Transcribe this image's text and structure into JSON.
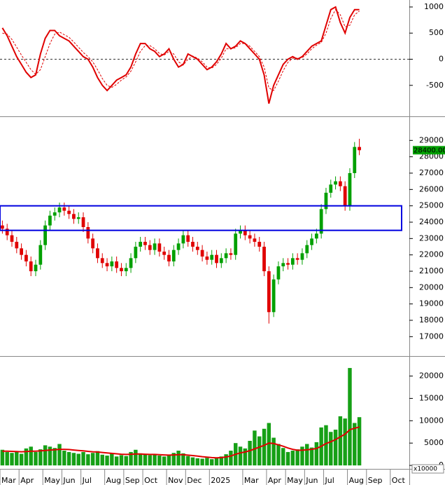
{
  "chart_data": [
    {
      "type": "line",
      "ylim": [
        -1040,
        1080
      ],
      "yticks": [
        1000,
        500,
        0,
        -500
      ],
      "zero_line": true,
      "series": [
        {
          "color": "#e00000",
          "dash": false,
          "values": [
            600,
            450,
            250,
            50,
            -100,
            -250,
            -350,
            -300,
            100,
            400,
            550,
            550,
            450,
            400,
            350,
            250,
            150,
            50,
            0,
            -150,
            -350,
            -500,
            -600,
            -500,
            -400,
            -350,
            -300,
            -150,
            100,
            300,
            300,
            200,
            150,
            50,
            100,
            200,
            0,
            -150,
            -100,
            100,
            50,
            0,
            -100,
            -200,
            -150,
            -50,
            100,
            300,
            200,
            250,
            350,
            300,
            200,
            100,
            0,
            -300,
            -850,
            -500,
            -300,
            -100,
            0,
            50,
            0,
            50,
            150,
            250,
            300,
            350,
            650,
            950,
            1000,
            700,
            500,
            800,
            950,
            950,
            null,
            null,
            null,
            null,
            null,
            null,
            null,
            null,
            null,
            null
          ]
        },
        {
          "color": "#e00000",
          "dash": true,
          "values": [
            500,
            480,
            380,
            230,
            80,
            -60,
            -200,
            -290,
            -200,
            50,
            300,
            480,
            520,
            470,
            420,
            330,
            230,
            130,
            50,
            -50,
            -200,
            -370,
            -500,
            -540,
            -480,
            -400,
            -340,
            -230,
            -50,
            150,
            260,
            260,
            200,
            110,
            80,
            150,
            100,
            -50,
            -110,
            0,
            60,
            20,
            -50,
            -150,
            -170,
            -100,
            20,
            200,
            200,
            220,
            300,
            300,
            250,
            150,
            50,
            -150,
            -550,
            -600,
            -420,
            -220,
            -60,
            20,
            20,
            30,
            100,
            200,
            270,
            320,
            500,
            780,
            950,
            850,
            620,
            650,
            850,
            920,
            null,
            null,
            null,
            null,
            null,
            null,
            null,
            null,
            null,
            null
          ]
        }
      ]
    },
    {
      "type": "candlestick",
      "ylim": [
        15900,
        30300
      ],
      "yticks": [
        29000,
        28000,
        27000,
        26000,
        25000,
        24000,
        23000,
        22000,
        21000,
        20000,
        19000,
        18000,
        17000
      ],
      "up_color": "#00a000",
      "down_color": "#e00000",
      "zone": [
        23500,
        25000
      ],
      "zone_color": "#0000e0",
      "last": {
        "value": 28400,
        "label": "28400.00"
      },
      "last_color": "#00a000",
      "candles": [
        [
          23800,
          24100,
          23300,
          23600
        ],
        [
          23600,
          23900,
          22900,
          23200
        ],
        [
          23200,
          23500,
          22500,
          22800
        ],
        [
          22800,
          23100,
          22100,
          22400
        ],
        [
          22400,
          22700,
          21700,
          22000
        ],
        [
          22000,
          22300,
          21300,
          21600
        ],
        [
          21600,
          21900,
          20700,
          21000
        ],
        [
          21000,
          21700,
          20700,
          21400
        ],
        [
          21400,
          22900,
          21100,
          22600
        ],
        [
          22600,
          24100,
          22300,
          23800
        ],
        [
          23800,
          24700,
          23500,
          24400
        ],
        [
          24400,
          24900,
          24100,
          24600
        ],
        [
          24600,
          25200,
          24300,
          24900
        ],
        [
          24900,
          25200,
          24400,
          24700
        ],
        [
          24700,
          25000,
          24200,
          24500
        ],
        [
          24500,
          24800,
          23900,
          24200
        ],
        [
          24200,
          24600,
          23900,
          24300
        ],
        [
          24300,
          24600,
          23400,
          23700
        ],
        [
          23700,
          24000,
          22700,
          23000
        ],
        [
          23000,
          23300,
          22100,
          22400
        ],
        [
          22400,
          22700,
          21500,
          21800
        ],
        [
          21800,
          22100,
          21200,
          21500
        ],
        [
          21500,
          21800,
          21000,
          21300
        ],
        [
          21300,
          21900,
          21000,
          21600
        ],
        [
          21600,
          21900,
          20900,
          21200
        ],
        [
          21200,
          21500,
          20700,
          21000
        ],
        [
          21000,
          21500,
          20700,
          21200
        ],
        [
          21200,
          22100,
          20900,
          21800
        ],
        [
          21800,
          22800,
          21500,
          22500
        ],
        [
          22500,
          23100,
          22200,
          22800
        ],
        [
          22800,
          23100,
          22300,
          22600
        ],
        [
          22600,
          22900,
          22000,
          22300
        ],
        [
          22300,
          23000,
          22000,
          22700
        ],
        [
          22700,
          23000,
          21900,
          22200
        ],
        [
          22200,
          22500,
          21700,
          22000
        ],
        [
          22000,
          22300,
          21300,
          21600
        ],
        [
          21600,
          22600,
          21300,
          22300
        ],
        [
          22300,
          23000,
          22000,
          22700
        ],
        [
          22700,
          23500,
          22400,
          23200
        ],
        [
          23200,
          23500,
          22500,
          22800
        ],
        [
          22800,
          23100,
          22200,
          22500
        ],
        [
          22500,
          22800,
          22000,
          22300
        ],
        [
          22300,
          22600,
          21600,
          21900
        ],
        [
          21900,
          22200,
          21400,
          21700
        ],
        [
          21700,
          22300,
          21400,
          22000
        ],
        [
          22000,
          22300,
          21200,
          21500
        ],
        [
          21500,
          22100,
          21200,
          21800
        ],
        [
          21800,
          22400,
          21500,
          22100
        ],
        [
          22100,
          22400,
          21700,
          22000
        ],
        [
          22000,
          23600,
          21700,
          23300
        ],
        [
          23300,
          23800,
          23000,
          23500
        ],
        [
          23500,
          23800,
          22900,
          23200
        ],
        [
          23200,
          23500,
          22700,
          23000
        ],
        [
          23000,
          23300,
          22500,
          22800
        ],
        [
          22800,
          23100,
          22200,
          22500
        ],
        [
          22500,
          22800,
          20700,
          21000
        ],
        [
          21000,
          21300,
          17800,
          18500
        ],
        [
          18500,
          20800,
          18200,
          20500
        ],
        [
          20500,
          21600,
          20200,
          21300
        ],
        [
          21300,
          21800,
          21000,
          21500
        ],
        [
          21500,
          21800,
          21100,
          21400
        ],
        [
          21400,
          22100,
          21100,
          21800
        ],
        [
          21800,
          22100,
          21400,
          21700
        ],
        [
          21700,
          22400,
          21400,
          22100
        ],
        [
          22100,
          22900,
          21800,
          22600
        ],
        [
          22600,
          23300,
          22300,
          23000
        ],
        [
          23000,
          23600,
          22700,
          23300
        ],
        [
          23300,
          25100,
          23000,
          24800
        ],
        [
          24800,
          26100,
          24500,
          25800
        ],
        [
          25800,
          26600,
          25500,
          26300
        ],
        [
          26300,
          26800,
          26000,
          26500
        ],
        [
          26500,
          26800,
          25900,
          26200
        ],
        [
          26200,
          26500,
          24700,
          25000
        ],
        [
          25000,
          27300,
          24700,
          27000
        ],
        [
          27000,
          28900,
          26700,
          28600
        ],
        [
          28600,
          29100,
          28100,
          28400
        ],
        null,
        null,
        null,
        null,
        null,
        null,
        null,
        null,
        null,
        null
      ]
    },
    {
      "type": "bar",
      "ylim": [
        -460,
        23850
      ],
      "yticks": [
        20000,
        15000,
        10000,
        5000,
        0
      ],
      "unit_label": "x10000",
      "categories": [
        "Mar",
        null,
        null,
        null,
        "Apr",
        null,
        null,
        null,
        null,
        "May",
        null,
        null,
        null,
        "Jun",
        null,
        null,
        null,
        "Jul",
        null,
        null,
        null,
        null,
        "Aug",
        null,
        null,
        null,
        "Sep",
        null,
        null,
        null,
        "Oct",
        null,
        null,
        null,
        null,
        "Nov",
        null,
        null,
        null,
        "Dec",
        null,
        null,
        null,
        null,
        "2025",
        null,
        null,
        null,
        null,
        null,
        null,
        "Mar",
        null,
        null,
        null,
        null,
        "Apr",
        null,
        null,
        null,
        "May",
        null,
        null,
        null,
        "Jun",
        null,
        null,
        null,
        "Jul",
        null,
        null,
        null,
        null,
        "Aug",
        null,
        null,
        null,
        "Sep",
        null,
        null,
        null,
        null,
        "Oct",
        null,
        null,
        null
      ],
      "color": "#16a016",
      "values": [
        3500,
        3000,
        2800,
        3200,
        2600,
        3800,
        4200,
        3000,
        3600,
        4500,
        4200,
        3900,
        4800,
        3300,
        3000,
        2800,
        2600,
        3000,
        2500,
        2800,
        3200,
        2400,
        2200,
        2600,
        2000,
        2300,
        2100,
        3000,
        3500,
        2700,
        2400,
        2300,
        2600,
        2200,
        2000,
        2400,
        2800,
        3300,
        2700,
        2100,
        1800,
        1600,
        1500,
        1700,
        1400,
        1600,
        2000,
        2500,
        3300,
        5000,
        4200,
        3800,
        5500,
        7800,
        6500,
        8200,
        9500,
        6200,
        4800,
        3900,
        3000,
        3300,
        3600,
        4200,
        4800,
        4000,
        5200,
        8500,
        9000,
        7500,
        8000,
        11000,
        10500,
        21800,
        9500,
        10800,
        null,
        null,
        null,
        null,
        null,
        null,
        null,
        null,
        null,
        null
      ],
      "ma_color": "#e00000",
      "ma": [
        3200,
        3200,
        3150,
        3100,
        3050,
        3100,
        3200,
        3200,
        3250,
        3350,
        3450,
        3500,
        3600,
        3600,
        3550,
        3450,
        3350,
        3250,
        3150,
        3050,
        3000,
        2900,
        2800,
        2700,
        2600,
        2500,
        2450,
        2500,
        2550,
        2550,
        2500,
        2450,
        2450,
        2400,
        2350,
        2300,
        2350,
        2400,
        2400,
        2300,
        2200,
        2100,
        1950,
        1850,
        1750,
        1700,
        1750,
        1900,
        2100,
        2500,
        2800,
        3000,
        3300,
        3700,
        4100,
        4500,
        5000,
        4900,
        4600,
        4300,
        3900,
        3600,
        3400,
        3400,
        3500,
        3600,
        3800,
        4300,
        4900,
        5300,
        5800,
        6400,
        7000,
        8000,
        8300,
        8600,
        null,
        null,
        null,
        null,
        null,
        null,
        null,
        null,
        null,
        null
      ]
    }
  ]
}
